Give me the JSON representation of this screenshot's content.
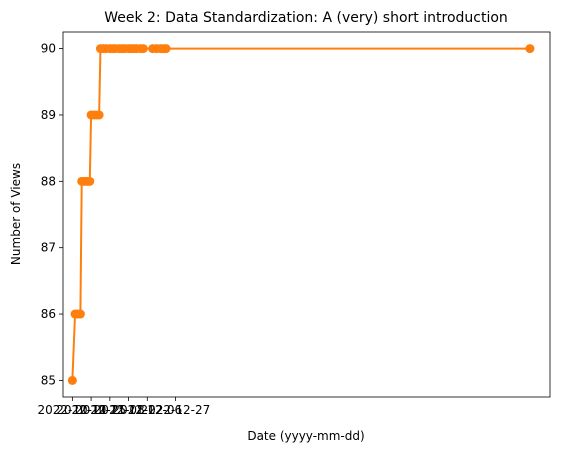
{
  "chart_data": {
    "type": "line",
    "title": "Week 2: Data Standardization: A (very) short introduction",
    "xlabel": "Date (yyyy-mm-dd)",
    "ylabel": "Number of Views",
    "x_tick_labels": [
      "2022-10-11",
      "2022-10-25",
      "2022-11-08",
      "2022-11-22",
      "2022-12-06",
      "2022-12-27"
    ],
    "y_ticks": [
      85,
      86,
      87,
      88,
      89,
      90
    ],
    "ylim": [
      84.75,
      90.25
    ],
    "xlim": [
      "2022-10-04",
      "2023-10-03"
    ],
    "grid": false,
    "series": [
      {
        "color": "#ff7f0e",
        "points": [
          {
            "x": "2022-10-11",
            "y": 85
          },
          {
            "x": "2022-10-13",
            "y": 86
          },
          {
            "x": "2022-10-15",
            "y": 86
          },
          {
            "x": "2022-10-17",
            "y": 86
          },
          {
            "x": "2022-10-18",
            "y": 88
          },
          {
            "x": "2022-10-20",
            "y": 88
          },
          {
            "x": "2022-10-22",
            "y": 88
          },
          {
            "x": "2022-10-24",
            "y": 88
          },
          {
            "x": "2022-10-25",
            "y": 89
          },
          {
            "x": "2022-10-27",
            "y": 89
          },
          {
            "x": "2022-10-29",
            "y": 89
          },
          {
            "x": "2022-10-31",
            "y": 89
          },
          {
            "x": "2022-11-01",
            "y": 90
          },
          {
            "x": "2022-11-03",
            "y": 90
          },
          {
            "x": "2022-11-05",
            "y": 90
          },
          {
            "x": "2022-11-08",
            "y": 90
          },
          {
            "x": "2022-11-10",
            "y": 90
          },
          {
            "x": "2022-11-12",
            "y": 90
          },
          {
            "x": "2022-11-15",
            "y": 90
          },
          {
            "x": "2022-11-17",
            "y": 90
          },
          {
            "x": "2022-11-19",
            "y": 90
          },
          {
            "x": "2022-11-22",
            "y": 90
          },
          {
            "x": "2022-11-24",
            "y": 90
          },
          {
            "x": "2022-11-26",
            "y": 90
          },
          {
            "x": "2022-11-28",
            "y": 90
          },
          {
            "x": "2022-12-01",
            "y": 90
          },
          {
            "x": "2022-12-03",
            "y": 90
          },
          {
            "x": "2022-12-10",
            "y": 90
          },
          {
            "x": "2022-12-13",
            "y": 90
          },
          {
            "x": "2022-12-16",
            "y": 90
          },
          {
            "x": "2022-12-18",
            "y": 90
          },
          {
            "x": "2022-12-20",
            "y": 90
          },
          {
            "x": "2023-09-18",
            "y": 90
          }
        ]
      }
    ]
  }
}
